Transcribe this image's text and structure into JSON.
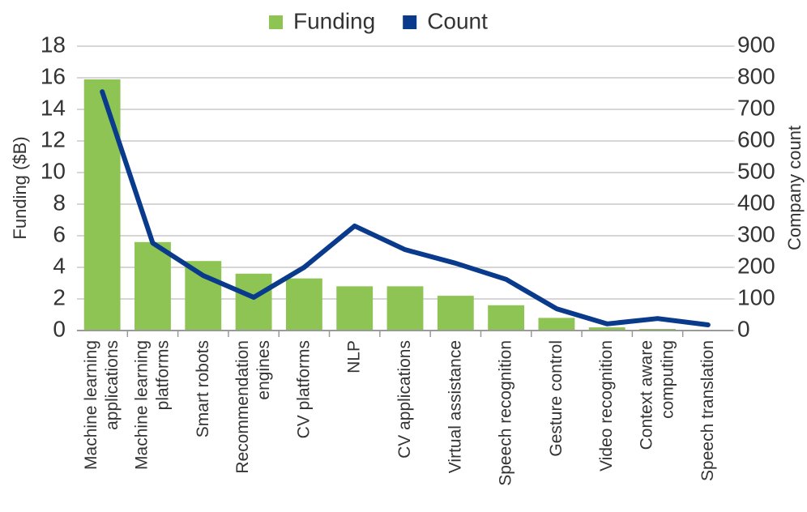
{
  "chart_data": {
    "type": "bar",
    "categories": [
      "Machine learning\napplications",
      "Machine learning\nplatforms",
      "Smart robots",
      "Recommendation\nengines",
      "CV platforms",
      "NLP",
      "CV applications",
      "Virtual assistance",
      "Speech recognition",
      "Gesture control",
      "Video recognition",
      "Context aware\ncomputing",
      "Speech translation"
    ],
    "series": [
      {
        "name": "Funding",
        "type": "bar",
        "color": "#8dc454",
        "values": [
          15.9,
          5.6,
          4.4,
          3.6,
          3.3,
          2.8,
          2.8,
          2.2,
          1.6,
          0.8,
          0.2,
          0.1,
          0.05
        ]
      },
      {
        "name": "Count",
        "type": "line",
        "axis": "y2",
        "color": "#0a3a8c",
        "values": [
          756,
          277,
          174,
          105,
          200,
          331,
          256,
          213,
          162,
          69,
          21,
          38,
          18
        ]
      }
    ],
    "ylabel": "Funding ($B)",
    "y2label": "Company count",
    "ylim": [
      0,
      18
    ],
    "yticks": [
      0,
      2,
      4,
      6,
      8,
      10,
      12,
      14,
      16,
      18
    ],
    "y2lim": [
      0,
      900
    ],
    "y2ticks": [
      0,
      100,
      200,
      300,
      400,
      500,
      600,
      700,
      800,
      900
    ],
    "grid": true,
    "legend": "top"
  }
}
